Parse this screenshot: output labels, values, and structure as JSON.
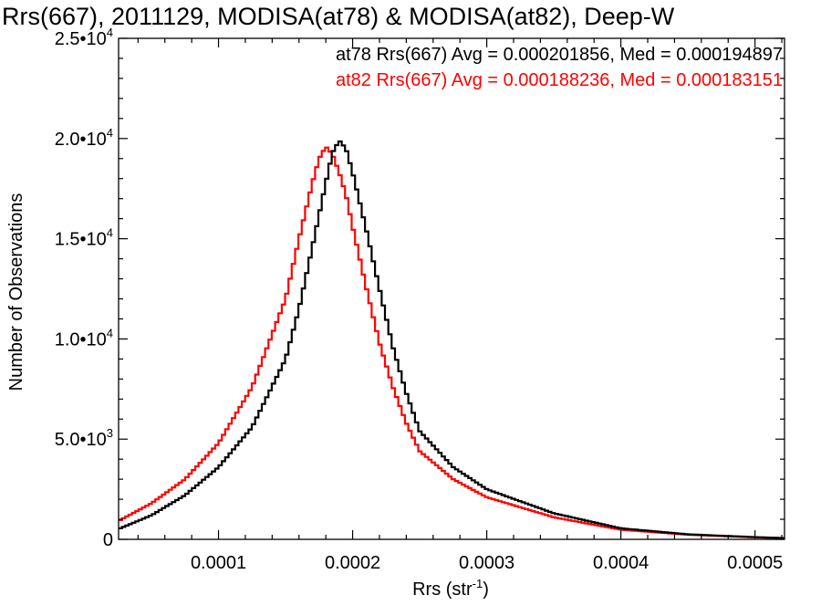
{
  "chart_data": {
    "type": "histogram",
    "title": "Rrs(667), 2011129, MODISA(at78) & MODISA(at82), Deep-W",
    "xlabel": "Rrs (str",
    "xlabel_sup": "-1",
    "xlabel_close": ")",
    "ylabel": "Number of Observations",
    "xlim": [
      2.55e-05,
      0.000522
    ],
    "ylim": [
      0,
      25000
    ],
    "x_ticks": [
      {
        "value": 0.0001,
        "label": "0.0001"
      },
      {
        "value": 0.0002,
        "label": "0.0002"
      },
      {
        "value": 0.0003,
        "label": "0.0003"
      },
      {
        "value": 0.0004,
        "label": "0.0004"
      },
      {
        "value": 0.0005,
        "label": "0.0005"
      }
    ],
    "y_ticks": [
      {
        "value": 0,
        "mant": "0",
        "exp": ""
      },
      {
        "value": 5000,
        "mant": "5.0•10",
        "exp": "3"
      },
      {
        "value": 10000,
        "mant": "1.0•10",
        "exp": "4"
      },
      {
        "value": 15000,
        "mant": "1.5•10",
        "exp": "4"
      },
      {
        "value": 20000,
        "mant": "2.0•10",
        "exp": "4"
      },
      {
        "value": 25000,
        "mant": "2.5•10",
        "exp": "4"
      }
    ],
    "grid": false,
    "legend_position": "top-right",
    "series": [
      {
        "name": "at78 Rrs(667) Avg = 0.000201856, Med = 0.000194897",
        "color": "#000000",
        "x": [
          2.5e-05,
          5e-05,
          7.5e-05,
          0.0001,
          0.000125,
          0.00015,
          0.00016,
          0.00017,
          0.00018,
          0.000185,
          0.00019,
          0.000195,
          0.0002,
          0.00021,
          0.00022,
          0.00023,
          0.00024,
          0.00025,
          0.000275,
          0.0003,
          0.00035,
          0.0004,
          0.00045,
          0.0005,
          0.000522
        ],
        "y": [
          500,
          1200,
          2200,
          3600,
          5600,
          9000,
          11500,
          14600,
          17800,
          19300,
          19900,
          19500,
          18300,
          15500,
          12500,
          9600,
          7300,
          5400,
          3600,
          2500,
          1300,
          550,
          250,
          110,
          60
        ]
      },
      {
        "name": "at82 Rrs(667) Avg = 0.000188236, Med = 0.000183151",
        "color": "#ff0000",
        "x": [
          2.5e-05,
          5e-05,
          7.5e-05,
          0.0001,
          0.000125,
          0.00015,
          0.00016,
          0.00017,
          0.000175,
          0.00018,
          0.000185,
          0.00019,
          0.000195,
          0.0002,
          0.00021,
          0.00022,
          0.00023,
          0.00024,
          0.00025,
          0.000275,
          0.0003,
          0.00035,
          0.0004,
          0.00045,
          0.0005,
          0.000522
        ],
        "y": [
          900,
          1800,
          3000,
          4800,
          7600,
          12000,
          15000,
          17800,
          19000,
          19600,
          19200,
          18300,
          17200,
          15600,
          12600,
          9800,
          7600,
          5800,
          4400,
          3000,
          2100,
          1100,
          480,
          230,
          100,
          60
        ]
      }
    ]
  }
}
